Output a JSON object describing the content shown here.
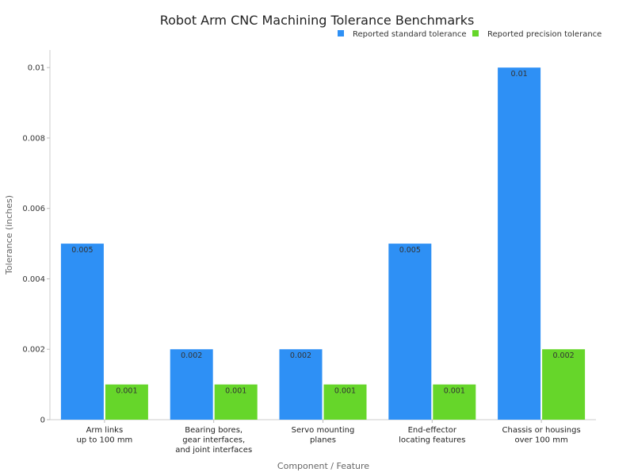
{
  "chart_data": {
    "type": "bar",
    "title": "Robot Arm CNC Machining Tolerance Benchmarks",
    "xlabel": "Component / Feature",
    "ylabel": "Tolerance (inches)",
    "ylim": [
      0,
      0.0105
    ],
    "yticks": [
      0,
      0.002,
      0.004,
      0.006,
      0.008,
      0.01
    ],
    "ytick_labels": [
      "0",
      "0.002",
      "0.004",
      "0.006",
      "0.008",
      "0.01"
    ],
    "grid": false,
    "legend_position": "top-right",
    "categories": [
      [
        "Arm links",
        "up to 100 mm"
      ],
      [
        "Bearing bores,",
        "gear interfaces,",
        "and joint interfaces"
      ],
      [
        "Servo mounting",
        "planes"
      ],
      [
        "End-effector",
        "locating features"
      ],
      [
        "Chassis or housings",
        "over 100 mm"
      ]
    ],
    "series": [
      {
        "name": "Reported standard tolerance",
        "color": "#2E90F5",
        "values": [
          0.005,
          0.002,
          0.002,
          0.005,
          0.01
        ],
        "labels": [
          "0.005",
          "0.002",
          "0.002",
          "0.005",
          "0.01"
        ]
      },
      {
        "name": "Reported precision tolerance",
        "color": "#66D62A",
        "values": [
          0.001,
          0.001,
          0.001,
          0.001,
          0.002
        ],
        "labels": [
          "0.001",
          "0.001",
          "0.001",
          "0.001",
          "0.002"
        ]
      }
    ]
  }
}
